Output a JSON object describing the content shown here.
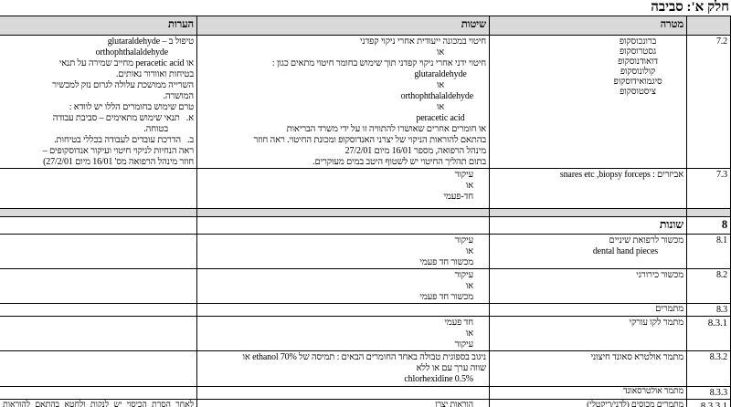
{
  "title": "חלק א': סביבה",
  "colors": {
    "header_bg": "#d9d9d9",
    "separator_bg": "#d9d9d9",
    "border": "#000000",
    "text": "#000000",
    "page_bg": "#ffffff"
  },
  "table": {
    "headers": {
      "num": "",
      "target": "מטרה",
      "methods": "שיטות",
      "notes": "הערות"
    },
    "rows": [
      {
        "num": "7.2",
        "target": [
          {
            "t": "ברונכוסקופ",
            "s": "chem"
          },
          {
            "t": "גסטרוסקופ",
            "s": "chem"
          },
          {
            "t": "דואודנוסקופ",
            "s": "chem"
          },
          {
            "t": "קולונוסקופ",
            "s": "chem"
          },
          {
            "t": "סיגמואידוסקופ",
            "s": "chem"
          },
          {
            "t": "ציסטוסקופ",
            "s": "chem"
          }
        ],
        "methods": [
          {
            "t": "חיטוי במכונה ייעודית אחרי ניקוי קפדני"
          },
          {
            "t": "או",
            "s": "chem"
          },
          {
            "t": "חיטוי ידני אחרי ניקוי קפדני תוך שימוש בחומר חיטוי מתאים כגון :"
          },
          {
            "t": "glutaraldehyde",
            "s": "chem"
          },
          {
            "t": "או",
            "s": "chem"
          },
          {
            "t": "orthophthalaldehyde",
            "s": "chem"
          },
          {
            "t": "או",
            "s": "chem"
          },
          {
            "t": "peracetic acid",
            "s": "chem"
          },
          {
            "t": "או חומרים אחרים שאושרו להתוויה זו על ידי משרד הבריאות"
          },
          {
            "t": "בהתאם להוראות הניקוי של יצרני האנדוסקופ ומכונת החיטוי. ראה חוזר"
          },
          {
            "t": "מינהל הרפואה, מספר 16/01 מיום 27/2/01"
          },
          {
            "t": "בתום תהליך החיטוי יש לשטוף היטב במים מעוקרים."
          }
        ],
        "notes": [
          {
            "t": "טיפול ב – glutaraldehyde"
          },
          {
            "t": "orthophthalaldehyde",
            "s": "n2"
          },
          {
            "t": "או peracetic acid מחייב שמירה על תנאי"
          },
          {
            "t": "בטיחות ואוורור נאותים."
          },
          {
            "t": "השרייה ממושכת עלולה לגרום נזק למכשיר"
          },
          {
            "t": "המושרה."
          },
          {
            "t": "טרם שימוש בחומרים הללו יש לוודא :"
          },
          {
            "t": "א.   תנאי שימוש מתאימים – סביבת עבודה"
          },
          {
            "t": "בטוחה.",
            "s": "n2"
          },
          {
            "t": "ב.   הדרכת עובדים לעבודה בכללי בטיחות."
          },
          {
            "t": "ראה הנחיות לניקוי חיטוי ועיקור אנדוסקופים –"
          },
          {
            "t": "חוזר מינהל הרפואה מס' 16/01 מיום 27/2/01)"
          }
        ]
      },
      {
        "num": "7.3",
        "target": [
          {
            "t": "אביזרים : biopsy forceps‏, ‏snares etc"
          }
        ],
        "methods": [
          {
            "t": "עיקור",
            "s": "ind"
          },
          {
            "t": "או",
            "s": "ind"
          },
          {
            "t": "חד-פעמי",
            "s": "ind"
          }
        ],
        "notes": []
      },
      {
        "sep": true
      },
      {
        "num": "8",
        "target": [
          {
            "t": "שונות",
            "s": "b"
          }
        ],
        "methods": [],
        "notes": []
      },
      {
        "num": "8.1",
        "target": [
          {
            "t": "מכשור לרפואת שיניים"
          },
          {
            "t": "dental hand pieces",
            "s": "n2"
          }
        ],
        "methods": [
          {
            "t": "עיקור",
            "s": "ind"
          },
          {
            "t": "או",
            "s": "ind"
          },
          {
            "t": "מכשור חד פעמי",
            "s": "ind"
          }
        ],
        "notes": []
      },
      {
        "num": "8.2",
        "target": [
          {
            "t": "מכשור כירורגי"
          }
        ],
        "methods": [
          {
            "t": "עיקור",
            "s": "ind"
          },
          {
            "t": "או",
            "s": "ind"
          },
          {
            "t": "מכשור חד פעמי",
            "s": "ind"
          }
        ],
        "notes": []
      },
      {
        "num": "8.3",
        "target": [
          {
            "t": "מתמרים"
          }
        ],
        "methods": [],
        "notes": []
      },
      {
        "num": "8.3.1",
        "target": [
          {
            "t": "מתמר לקו עורקי"
          }
        ],
        "methods": [
          {
            "t": "חד פעמי",
            "s": "ind"
          },
          {
            "t": "או",
            "s": "ind"
          },
          {
            "t": "עיקור",
            "s": "ind"
          }
        ],
        "notes": []
      },
      {
        "num": "8.3.2",
        "target": [
          {
            "t": "מתמר אולטרא סאונד חיצוני"
          }
        ],
        "methods": [
          {
            "t": "ניגוב בספוגית טבולה באחד החומרים הבאים : תמיסה של ethanol 70% או"
          },
          {
            "t": "שווה ערך עם או ללא"
          },
          {
            "t": "chlorhexidine 0.5%",
            "s": "ind"
          }
        ],
        "notes": []
      },
      {
        "num": "8.3.3",
        "target": [
          {
            "t": "מתמר אולטרסאונד"
          }
        ],
        "methods": [],
        "notes": []
      },
      {
        "num": "8.3.3.1",
        "target": [
          {
            "t": "מתמרים מכוסים (לדני/ריקטלי)"
          }
        ],
        "methods": [
          {
            "t": "הוראות יצרן",
            "s": "ind"
          }
        ],
        "notes": [
          {
            "t": "לאחר הסרת הכיסוי יש לנקות ולחטא בהתאם להוראות היצרן.",
            "s": "just"
          }
        ]
      }
    ]
  }
}
